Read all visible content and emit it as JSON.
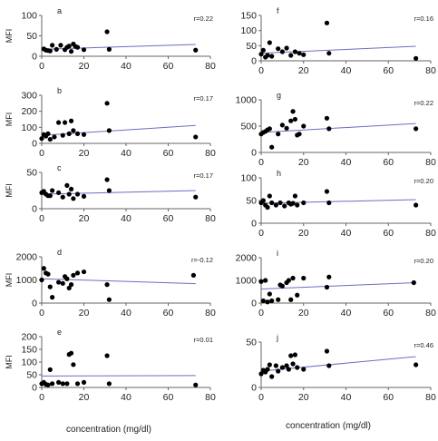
{
  "colors": {
    "points": "#000000",
    "trendline": "#6a6fbf",
    "axis": "#666666"
  },
  "xlabel": "concentration (mg/dl)",
  "chart_data": [
    {
      "type": "scatter",
      "panel": "a",
      "r": "r=0.22",
      "ylabel": "MFI",
      "xlim": [
        0,
        80
      ],
      "xticks": [
        0,
        20,
        40,
        60,
        80
      ],
      "ylim": [
        0,
        100
      ],
      "yticks": [
        0,
        50,
        100
      ],
      "x": [
        1,
        2,
        3,
        4,
        5,
        7,
        9,
        11,
        12,
        13,
        14,
        15,
        16,
        17,
        20,
        31,
        32,
        73
      ],
      "y": [
        18,
        15,
        14,
        13,
        27,
        17,
        27,
        16,
        22,
        25,
        12,
        30,
        24,
        22,
        16,
        60,
        17,
        15
      ],
      "trend": [
        [
          0,
          17
        ],
        [
          73,
          29
        ]
      ]
    },
    {
      "type": "scatter",
      "panel": "f",
      "r": "r=0.16",
      "ylabel": "",
      "xlim": [
        0,
        80
      ],
      "xticks": [
        0,
        20,
        40,
        60,
        80
      ],
      "ylim": [
        0,
        150
      ],
      "yticks": [
        0,
        50,
        100,
        150
      ],
      "x": [
        0,
        1,
        2,
        3,
        4,
        5,
        8,
        10,
        12,
        14,
        16,
        18,
        20,
        31,
        32,
        73
      ],
      "y": [
        22,
        35,
        12,
        18,
        60,
        15,
        40,
        30,
        42,
        18,
        30,
        25,
        20,
        125,
        25,
        8
      ],
      "trend": [
        [
          0,
          25
        ],
        [
          73,
          48
        ]
      ]
    },
    {
      "type": "scatter",
      "panel": "b",
      "r": "r=0.17",
      "ylabel": "MFI",
      "xlim": [
        0,
        80
      ],
      "xticks": [
        0,
        20,
        40,
        60,
        80
      ],
      "ylim": [
        0,
        300
      ],
      "yticks": [
        0,
        100,
        200,
        300
      ],
      "x": [
        0,
        1,
        2,
        3,
        4,
        6,
        8,
        10,
        11,
        13,
        14,
        15,
        17,
        20,
        31,
        32,
        73
      ],
      "y": [
        30,
        55,
        45,
        60,
        25,
        40,
        130,
        50,
        130,
        60,
        140,
        80,
        60,
        55,
        250,
        80,
        40
      ],
      "trend": [
        [
          0,
          50
        ],
        [
          73,
          112
        ]
      ]
    },
    {
      "type": "scatter",
      "panel": "g",
      "r": "r=0.22",
      "ylabel": "",
      "xlim": [
        0,
        80
      ],
      "xticks": [
        0,
        20,
        40,
        60,
        80
      ],
      "ylim": [
        0,
        1000
      ],
      "yticks": [
        0,
        500,
        1000
      ],
      "x": [
        0,
        1,
        2,
        3,
        4,
        5,
        8,
        10,
        12,
        14,
        15,
        16,
        17,
        18,
        20,
        31,
        32,
        73
      ],
      "y": [
        350,
        380,
        400,
        430,
        450,
        100,
        350,
        520,
        460,
        600,
        780,
        630,
        330,
        350,
        500,
        650,
        450,
        450
      ],
      "trend": [
        [
          0,
          380
        ],
        [
          73,
          550
        ]
      ]
    },
    {
      "type": "scatter",
      "panel": "c",
      "r": "r=0.17",
      "ylabel": "MFI",
      "xlim": [
        0,
        80
      ],
      "xticks": [
        0,
        20,
        40,
        60,
        80
      ],
      "ylim": [
        0,
        50
      ],
      "yticks": [
        0,
        50
      ],
      "x": [
        0,
        1,
        2,
        3,
        4,
        5,
        8,
        10,
        12,
        13,
        14,
        15,
        17,
        20,
        31,
        32,
        73
      ],
      "y": [
        22,
        24,
        20,
        18,
        18,
        25,
        22,
        16,
        32,
        20,
        27,
        14,
        20,
        17,
        40,
        25,
        16
      ],
      "trend": [
        [
          0,
          20
        ],
        [
          73,
          25
        ]
      ]
    },
    {
      "type": "scatter",
      "panel": "h",
      "r": "r=0.20",
      "ylabel": "",
      "xlim": [
        0,
        80
      ],
      "xticks": [
        0,
        20,
        40,
        60,
        80
      ],
      "ylim": [
        0,
        100
      ],
      "yticks": [
        0,
        50,
        100
      ],
      "x": [
        0,
        1,
        2,
        3,
        4,
        5,
        7,
        9,
        11,
        13,
        14,
        15,
        16,
        17,
        20,
        31,
        32,
        73
      ],
      "y": [
        45,
        50,
        40,
        35,
        60,
        45,
        40,
        45,
        38,
        45,
        42,
        44,
        60,
        40,
        45,
        70,
        45,
        40
      ],
      "trend": [
        [
          0,
          44
        ],
        [
          73,
          52
        ]
      ]
    },
    {
      "type": "scatter",
      "panel": "d",
      "r": "r=-0.12",
      "ylabel": "MFI",
      "xlim": [
        0,
        80
      ],
      "xticks": [
        0,
        20,
        40,
        60,
        80
      ],
      "ylim": [
        0,
        2000
      ],
      "yticks": [
        0,
        1000,
        2000
      ],
      "x": [
        0,
        1,
        2,
        3,
        4,
        5,
        8,
        10,
        11,
        12,
        13,
        14,
        15,
        17,
        20,
        31,
        32,
        72
      ],
      "y": [
        1000,
        1500,
        1300,
        1250,
        700,
        250,
        900,
        850,
        1150,
        1050,
        650,
        800,
        1200,
        1300,
        1350,
        800,
        150,
        1200
      ],
      "trend": [
        [
          0,
          1050
        ],
        [
          73,
          840
        ]
      ]
    },
    {
      "type": "scatter",
      "panel": "i",
      "r": "r=0.20",
      "ylabel": "",
      "xlim": [
        0,
        80
      ],
      "xticks": [
        0,
        20,
        40,
        60,
        80
      ],
      "ylim": [
        0,
        2000
      ],
      "yticks": [
        0,
        1000,
        2000
      ],
      "x": [
        0,
        1,
        2,
        3,
        4,
        5,
        8,
        9,
        10,
        12,
        13,
        14,
        15,
        17,
        20,
        31,
        32,
        72
      ],
      "y": [
        950,
        100,
        1000,
        50,
        400,
        100,
        150,
        800,
        750,
        900,
        1000,
        150,
        1100,
        350,
        1100,
        700,
        1150,
        900
      ],
      "trend": [
        [
          0,
          620
        ],
        [
          73,
          900
        ]
      ]
    },
    {
      "type": "scatter",
      "panel": "e",
      "r": "r=0.01",
      "ylabel": "MFI",
      "xlim": [
        0,
        80
      ],
      "xticks": [
        0,
        20,
        40,
        60,
        80
      ],
      "ylim": [
        0,
        200
      ],
      "yticks": [
        0,
        50,
        100,
        150,
        200
      ],
      "x": [
        0,
        1,
        2,
        3,
        4,
        5,
        8,
        10,
        12,
        13,
        14,
        15,
        17,
        20,
        31,
        32,
        73
      ],
      "y": [
        15,
        20,
        12,
        10,
        70,
        15,
        20,
        15,
        15,
        130,
        135,
        90,
        15,
        20,
        125,
        15,
        10
      ],
      "trend": [
        [
          0,
          45
        ],
        [
          73,
          47
        ]
      ]
    },
    {
      "type": "scatter",
      "panel": "j",
      "r": "r=0.46",
      "ylabel": "",
      "xlim": [
        0,
        80
      ],
      "xticks": [
        0,
        20,
        40,
        60,
        80
      ],
      "ylim": [
        0,
        50
      ],
      "yticks": [
        0,
        50
      ],
      "x": [
        0,
        1,
        2,
        3,
        4,
        5,
        7,
        8,
        10,
        12,
        13,
        14,
        15,
        16,
        17,
        20,
        31,
        32,
        73
      ],
      "y": [
        15,
        19,
        17,
        20,
        25,
        12,
        24,
        18,
        22,
        24,
        20,
        35,
        26,
        36,
        22,
        20,
        40,
        24,
        25
      ],
      "trend": [
        [
          0,
          18
        ],
        [
          73,
          34
        ]
      ]
    }
  ]
}
